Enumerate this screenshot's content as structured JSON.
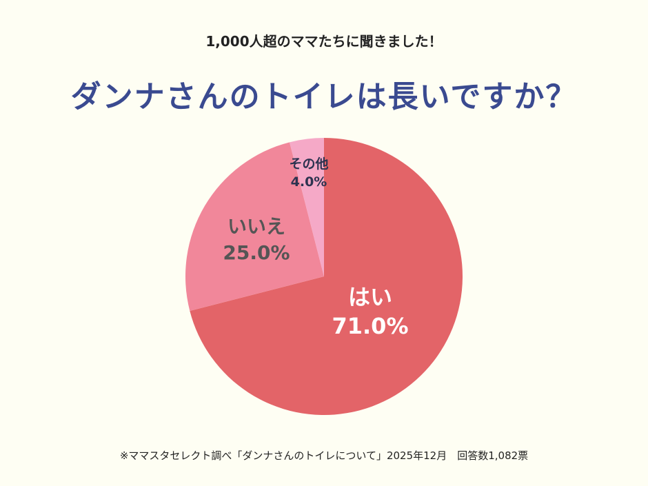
{
  "chart_data": {
    "type": "pie",
    "subtitle": "1,000人超のママたちに聞きました！",
    "title": "ダンナさんのトイレは長いですか？",
    "slices": [
      {
        "label": "はい",
        "value": 71.0,
        "value_label": "71.0%",
        "color": "#e36468",
        "text_color": "#ffffff"
      },
      {
        "label": "いいえ",
        "value": 25.0,
        "value_label": "25.0%",
        "color": "#f1879a",
        "text_color": "#555555"
      },
      {
        "label": "その他",
        "value": 4.0,
        "value_label": "4.0%",
        "color": "#f5a9c7",
        "text_color": "#2d3350"
      }
    ],
    "start": "top",
    "direction": "clockwise",
    "source_note": "※ママスタセレクト調べ「ダンナさんのトイレについて」2025年12月　回答数1,082票"
  }
}
